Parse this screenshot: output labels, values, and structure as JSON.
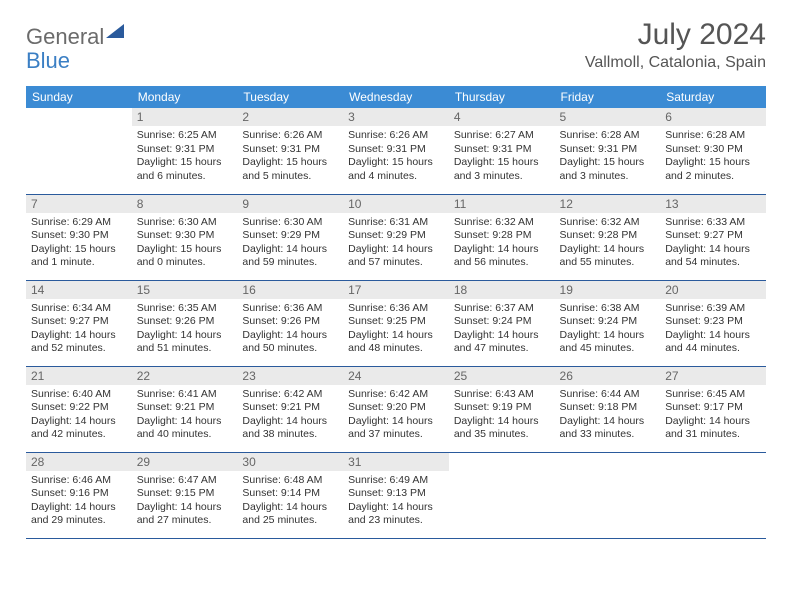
{
  "brand": {
    "word1": "General",
    "word2": "Blue"
  },
  "title": "July 2024",
  "location": "Vallmoll, Catalonia, Spain",
  "calendar": {
    "type": "table",
    "header_bg": "#3b8bd4",
    "header_fg": "#ffffff",
    "border_color": "#2a5a9c",
    "daynum_bg": "#eaeaea",
    "body_fontsize": 10.5,
    "columns": [
      "Sunday",
      "Monday",
      "Tuesday",
      "Wednesday",
      "Thursday",
      "Friday",
      "Saturday"
    ],
    "weeks": [
      [
        {
          "empty": true
        },
        {
          "day": "1",
          "sunrise": "Sunrise: 6:25 AM",
          "sunset": "Sunset: 9:31 PM",
          "daylight": "Daylight: 15 hours and 6 minutes."
        },
        {
          "day": "2",
          "sunrise": "Sunrise: 6:26 AM",
          "sunset": "Sunset: 9:31 PM",
          "daylight": "Daylight: 15 hours and 5 minutes."
        },
        {
          "day": "3",
          "sunrise": "Sunrise: 6:26 AM",
          "sunset": "Sunset: 9:31 PM",
          "daylight": "Daylight: 15 hours and 4 minutes."
        },
        {
          "day": "4",
          "sunrise": "Sunrise: 6:27 AM",
          "sunset": "Sunset: 9:31 PM",
          "daylight": "Daylight: 15 hours and 3 minutes."
        },
        {
          "day": "5",
          "sunrise": "Sunrise: 6:28 AM",
          "sunset": "Sunset: 9:31 PM",
          "daylight": "Daylight: 15 hours and 3 minutes."
        },
        {
          "day": "6",
          "sunrise": "Sunrise: 6:28 AM",
          "sunset": "Sunset: 9:30 PM",
          "daylight": "Daylight: 15 hours and 2 minutes."
        }
      ],
      [
        {
          "day": "7",
          "sunrise": "Sunrise: 6:29 AM",
          "sunset": "Sunset: 9:30 PM",
          "daylight": "Daylight: 15 hours and 1 minute."
        },
        {
          "day": "8",
          "sunrise": "Sunrise: 6:30 AM",
          "sunset": "Sunset: 9:30 PM",
          "daylight": "Daylight: 15 hours and 0 minutes."
        },
        {
          "day": "9",
          "sunrise": "Sunrise: 6:30 AM",
          "sunset": "Sunset: 9:29 PM",
          "daylight": "Daylight: 14 hours and 59 minutes."
        },
        {
          "day": "10",
          "sunrise": "Sunrise: 6:31 AM",
          "sunset": "Sunset: 9:29 PM",
          "daylight": "Daylight: 14 hours and 57 minutes."
        },
        {
          "day": "11",
          "sunrise": "Sunrise: 6:32 AM",
          "sunset": "Sunset: 9:28 PM",
          "daylight": "Daylight: 14 hours and 56 minutes."
        },
        {
          "day": "12",
          "sunrise": "Sunrise: 6:32 AM",
          "sunset": "Sunset: 9:28 PM",
          "daylight": "Daylight: 14 hours and 55 minutes."
        },
        {
          "day": "13",
          "sunrise": "Sunrise: 6:33 AM",
          "sunset": "Sunset: 9:27 PM",
          "daylight": "Daylight: 14 hours and 54 minutes."
        }
      ],
      [
        {
          "day": "14",
          "sunrise": "Sunrise: 6:34 AM",
          "sunset": "Sunset: 9:27 PM",
          "daylight": "Daylight: 14 hours and 52 minutes."
        },
        {
          "day": "15",
          "sunrise": "Sunrise: 6:35 AM",
          "sunset": "Sunset: 9:26 PM",
          "daylight": "Daylight: 14 hours and 51 minutes."
        },
        {
          "day": "16",
          "sunrise": "Sunrise: 6:36 AM",
          "sunset": "Sunset: 9:26 PM",
          "daylight": "Daylight: 14 hours and 50 minutes."
        },
        {
          "day": "17",
          "sunrise": "Sunrise: 6:36 AM",
          "sunset": "Sunset: 9:25 PM",
          "daylight": "Daylight: 14 hours and 48 minutes."
        },
        {
          "day": "18",
          "sunrise": "Sunrise: 6:37 AM",
          "sunset": "Sunset: 9:24 PM",
          "daylight": "Daylight: 14 hours and 47 minutes."
        },
        {
          "day": "19",
          "sunrise": "Sunrise: 6:38 AM",
          "sunset": "Sunset: 9:24 PM",
          "daylight": "Daylight: 14 hours and 45 minutes."
        },
        {
          "day": "20",
          "sunrise": "Sunrise: 6:39 AM",
          "sunset": "Sunset: 9:23 PM",
          "daylight": "Daylight: 14 hours and 44 minutes."
        }
      ],
      [
        {
          "day": "21",
          "sunrise": "Sunrise: 6:40 AM",
          "sunset": "Sunset: 9:22 PM",
          "daylight": "Daylight: 14 hours and 42 minutes."
        },
        {
          "day": "22",
          "sunrise": "Sunrise: 6:41 AM",
          "sunset": "Sunset: 9:21 PM",
          "daylight": "Daylight: 14 hours and 40 minutes."
        },
        {
          "day": "23",
          "sunrise": "Sunrise: 6:42 AM",
          "sunset": "Sunset: 9:21 PM",
          "daylight": "Daylight: 14 hours and 38 minutes."
        },
        {
          "day": "24",
          "sunrise": "Sunrise: 6:42 AM",
          "sunset": "Sunset: 9:20 PM",
          "daylight": "Daylight: 14 hours and 37 minutes."
        },
        {
          "day": "25",
          "sunrise": "Sunrise: 6:43 AM",
          "sunset": "Sunset: 9:19 PM",
          "daylight": "Daylight: 14 hours and 35 minutes."
        },
        {
          "day": "26",
          "sunrise": "Sunrise: 6:44 AM",
          "sunset": "Sunset: 9:18 PM",
          "daylight": "Daylight: 14 hours and 33 minutes."
        },
        {
          "day": "27",
          "sunrise": "Sunrise: 6:45 AM",
          "sunset": "Sunset: 9:17 PM",
          "daylight": "Daylight: 14 hours and 31 minutes."
        }
      ],
      [
        {
          "day": "28",
          "sunrise": "Sunrise: 6:46 AM",
          "sunset": "Sunset: 9:16 PM",
          "daylight": "Daylight: 14 hours and 29 minutes."
        },
        {
          "day": "29",
          "sunrise": "Sunrise: 6:47 AM",
          "sunset": "Sunset: 9:15 PM",
          "daylight": "Daylight: 14 hours and 27 minutes."
        },
        {
          "day": "30",
          "sunrise": "Sunrise: 6:48 AM",
          "sunset": "Sunset: 9:14 PM",
          "daylight": "Daylight: 14 hours and 25 minutes."
        },
        {
          "day": "31",
          "sunrise": "Sunrise: 6:49 AM",
          "sunset": "Sunset: 9:13 PM",
          "daylight": "Daylight: 14 hours and 23 minutes."
        },
        {
          "empty": true
        },
        {
          "empty": true
        },
        {
          "empty": true
        }
      ]
    ]
  }
}
